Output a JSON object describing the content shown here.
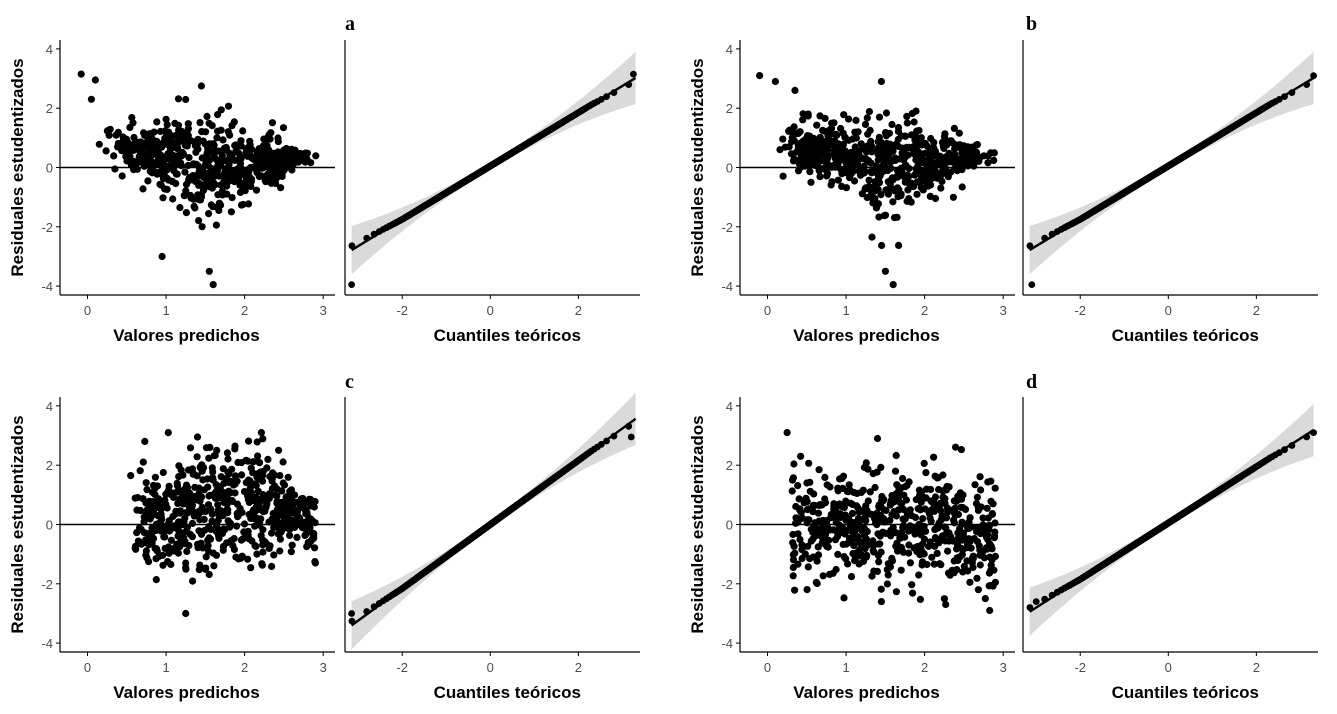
{
  "figure": {
    "panels": [
      {
        "label": "a",
        "residual_profile": "v",
        "qq_style": "lower-tail-deviation",
        "seed": 11
      },
      {
        "label": "b",
        "residual_profile": "v",
        "qq_style": "lower-tail-deviation",
        "seed": 23
      },
      {
        "label": "c",
        "residual_profile": "arch",
        "qq_style": "near-linear",
        "seed": 37
      },
      {
        "label": "d",
        "residual_profile": "flat",
        "qq_style": "near-linear",
        "seed": 53
      }
    ],
    "colors": {
      "points": "#000000",
      "line": "#000000",
      "band": "#d3d3d3",
      "axis": "#000000",
      "ticks": "#4d4d4d"
    }
  },
  "chart_data": [
    {
      "type": "scatter",
      "panel": "a-left",
      "xlabel": "Valores predichos",
      "ylabel": "Residuales estudentizados",
      "xlim": [
        -0.35,
        3.15
      ],
      "ylim": [
        -4.3,
        4.3
      ],
      "xticks": [
        "0",
        "1",
        "2",
        "3"
      ],
      "yticks": [
        "-4",
        "-2",
        "0",
        "2",
        "4"
      ],
      "hline_y": 0,
      "n_points_approx": 600,
      "x_range": [
        -0.1,
        2.7
      ],
      "y_range": [
        -3.95,
        3.15
      ],
      "notable_points": [
        [
          -0.08,
          3.15
        ],
        [
          0.1,
          2.95
        ],
        [
          0.05,
          2.3
        ],
        [
          1.45,
          2.75
        ],
        [
          1.55,
          -3.5
        ],
        [
          1.6,
          -3.95
        ],
        [
          0.95,
          -3.0
        ]
      ]
    },
    {
      "type": "scatter",
      "panel": "a-right",
      "xlabel": "Cuantiles teóricos",
      "ylabel": "",
      "xlim": [
        -3.3,
        3.4
      ],
      "ylim": [
        -4.3,
        4.3
      ],
      "xticks": [
        "-2",
        "0",
        "2"
      ],
      "yticks": [],
      "reference_line": {
        "intercept": 0.05,
        "slope": 0.9
      },
      "n_points_approx": 600,
      "lower_tail_point": [
        -3.15,
        -3.95
      ],
      "upper_tail_point": [
        3.25,
        3.15
      ]
    },
    {
      "type": "scatter",
      "panel": "b-left",
      "xlabel": "Valores predichos",
      "ylabel": "Residuales estudentizados",
      "xlim": [
        -0.35,
        3.15
      ],
      "ylim": [
        -4.3,
        4.3
      ],
      "xticks": [
        "0",
        "1",
        "2",
        "3"
      ],
      "yticks": [
        "-4",
        "-2",
        "0",
        "2",
        "4"
      ],
      "hline_y": 0,
      "n_points_approx": 600,
      "x_range": [
        -0.1,
        2.7
      ],
      "y_range": [
        -3.95,
        3.1
      ],
      "notable_points": [
        [
          -0.1,
          3.1
        ],
        [
          0.1,
          2.9
        ],
        [
          0.35,
          2.6
        ],
        [
          1.45,
          2.9
        ],
        [
          1.5,
          -3.5
        ],
        [
          1.6,
          -3.95
        ]
      ]
    },
    {
      "type": "scatter",
      "panel": "b-right",
      "xlabel": "Cuantiles teóricos",
      "ylabel": "",
      "xlim": [
        -3.3,
        3.4
      ],
      "ylim": [
        -4.3,
        4.3
      ],
      "xticks": [
        "-2",
        "0",
        "2"
      ],
      "yticks": [],
      "reference_line": {
        "intercept": 0.05,
        "slope": 0.9
      },
      "n_points_approx": 600,
      "lower_tail_point": [
        -3.1,
        -3.95
      ],
      "upper_tail_point": [
        3.3,
        3.1
      ]
    },
    {
      "type": "scatter",
      "panel": "c-left",
      "xlabel": "Valores predichos",
      "ylabel": "Residuales estudentizados",
      "xlim": [
        -0.35,
        3.15
      ],
      "ylim": [
        -4.3,
        4.3
      ],
      "xticks": [
        "0",
        "1",
        "2",
        "3"
      ],
      "yticks": [
        "-4",
        "-2",
        "0",
        "2",
        "4"
      ],
      "hline_y": 0,
      "n_points_approx": 600,
      "x_range": [
        0.55,
        2.95
      ],
      "y_range": [
        -3.0,
        2.95
      ],
      "notable_points": [
        [
          1.4,
          2.95
        ],
        [
          0.55,
          1.65
        ],
        [
          1.25,
          -3.0
        ],
        [
          2.9,
          -1.3
        ]
      ]
    },
    {
      "type": "scatter",
      "panel": "c-right",
      "xlabel": "Cuantiles teóricos",
      "ylabel": "",
      "xlim": [
        -3.3,
        3.4
      ],
      "ylim": [
        -4.3,
        4.3
      ],
      "xticks": [
        "-2",
        "0",
        "2"
      ],
      "yticks": [],
      "reference_line": {
        "intercept": 0.0,
        "slope": 1.08
      },
      "n_points_approx": 600,
      "lower_tail_point": [
        -3.15,
        -3.0
      ],
      "upper_tail_point": [
        3.2,
        2.95
      ]
    },
    {
      "type": "scatter",
      "panel": "d-left",
      "xlabel": "Valores predichos",
      "ylabel": "Residuales estudentizados",
      "xlim": [
        -0.35,
        3.15
      ],
      "ylim": [
        -4.3,
        4.3
      ],
      "xticks": [
        "0",
        "1",
        "2",
        "3"
      ],
      "yticks": [
        "-4",
        "-2",
        "0",
        "2",
        "4"
      ],
      "hline_y": 0,
      "n_points_approx": 600,
      "x_range": [
        0.2,
        2.95
      ],
      "y_range": [
        -2.6,
        3.1
      ],
      "notable_points": [
        [
          0.25,
          3.1
        ],
        [
          1.4,
          2.9
        ],
        [
          1.45,
          -2.6
        ],
        [
          2.9,
          -1.95
        ]
      ]
    },
    {
      "type": "scatter",
      "panel": "d-right",
      "xlabel": "Cuantiles teóricos",
      "ylabel": "",
      "xlim": [
        -3.3,
        3.4
      ],
      "ylim": [
        -4.3,
        4.3
      ],
      "xticks": [
        "-2",
        "0",
        "2"
      ],
      "yticks": [],
      "reference_line": {
        "intercept": 0.05,
        "slope": 0.95
      },
      "n_points_approx": 600,
      "lower_tail_point": [
        -3.0,
        -2.6
      ],
      "upper_tail_point": [
        3.3,
        3.1
      ]
    }
  ]
}
